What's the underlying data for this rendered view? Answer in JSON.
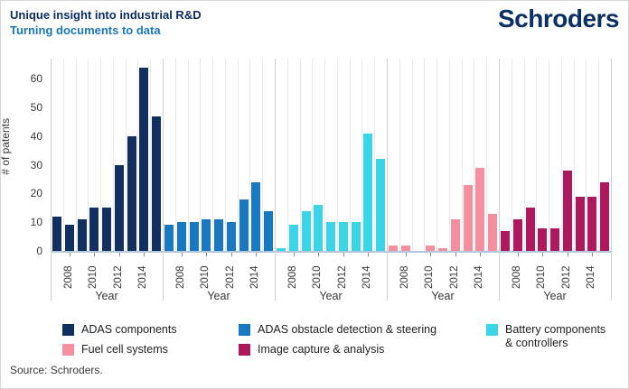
{
  "header": {
    "title": "Unique insight into industrial R&D",
    "subtitle": "Turning documents to data",
    "logo": "Schroders"
  },
  "chart_data": {
    "type": "bar",
    "title": "Unique insight into industrial R&D",
    "subtitle": "Turning documents to data",
    "ylabel": "# of patents",
    "group_xlabel": "Year",
    "y_ticks": [
      0,
      10,
      20,
      30,
      40,
      50,
      60
    ],
    "ylim": [
      0,
      67
    ],
    "years": [
      2007,
      2008,
      2009,
      2010,
      2011,
      2012,
      2013,
      2014,
      2015
    ],
    "x_tick_labels": [
      "2008",
      "2010",
      "2012",
      "2014"
    ],
    "grid": "vertical-only",
    "legend_position": "bottom",
    "series": [
      {
        "name": "ADAS components",
        "color": "#12305f",
        "values": [
          12,
          9,
          11,
          15,
          15,
          30,
          40,
          64,
          47
        ]
      },
      {
        "name": "ADAS obstacle detection & steering",
        "color": "#1879c0",
        "values": [
          9,
          10,
          10,
          11,
          11,
          10,
          18,
          24,
          14
        ]
      },
      {
        "name": "Battery components & controllers",
        "color": "#3ad6e7",
        "values": [
          1,
          9,
          14,
          16,
          10,
          10,
          10,
          41,
          32
        ]
      },
      {
        "name": "Fuel cell systems",
        "color": "#f58fa0",
        "values": [
          2,
          2,
          0,
          2,
          1,
          11,
          23,
          29,
          13
        ]
      },
      {
        "name": "Image capture & analysis",
        "color": "#ae195e",
        "values": [
          7,
          11,
          15,
          8,
          8,
          28,
          19,
          19,
          24
        ]
      }
    ]
  },
  "legend": {
    "items": [
      {
        "label": "ADAS components",
        "display": "ADAS components",
        "color": "#12305f"
      },
      {
        "label": "ADAS obstacle detection & steering",
        "display": "ADAS obstacle detection & steering",
        "color": "#1879c0"
      },
      {
        "label": "Battery components & controllers",
        "display": "Battery components\n& controllers",
        "color": "#3ad6e7"
      },
      {
        "label": "Fuel cell systems",
        "display": "Fuel cell systems",
        "color": "#f58fa0"
      },
      {
        "label": "Image capture & analysis",
        "display": "Image capture & analysis",
        "color": "#ae195e"
      }
    ]
  },
  "footer": {
    "source": "Source: Schroders."
  }
}
